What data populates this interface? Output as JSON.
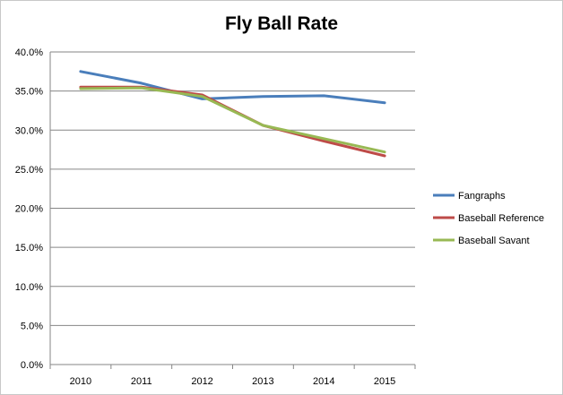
{
  "chart_data": {
    "type": "line",
    "title": "Fly Ball Rate",
    "xlabel": "",
    "ylabel": "",
    "categories": [
      "2010",
      "2011",
      "2012",
      "2013",
      "2014",
      "2015"
    ],
    "ylim": [
      0,
      40
    ],
    "yticks": [
      "0.0%",
      "5.0%",
      "10.0%",
      "15.0%",
      "20.0%",
      "25.0%",
      "30.0%",
      "35.0%",
      "40.0%"
    ],
    "grid": true,
    "legend_position": "right",
    "series": [
      {
        "name": "Fangraphs",
        "color": "#4a7ebb",
        "values": [
          37.5,
          36.0,
          34.0,
          34.3,
          34.4,
          33.5
        ]
      },
      {
        "name": "Baseball Reference",
        "color": "#be4b48",
        "values": [
          35.5,
          35.5,
          34.5,
          30.6,
          28.6,
          26.7
        ]
      },
      {
        "name": "Baseball Savant",
        "color": "#98b954",
        "values": [
          35.3,
          35.4,
          34.3,
          30.6,
          28.9,
          27.2
        ]
      }
    ]
  }
}
